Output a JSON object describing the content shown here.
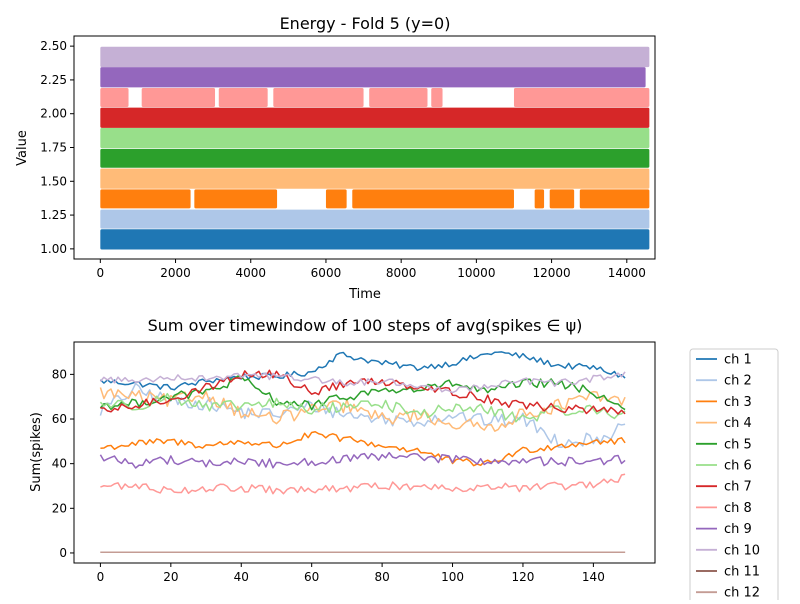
{
  "chart_data": [
    {
      "type": "scatter",
      "title": "Energy - Fold 5 (y=0)",
      "xlabel": "Time",
      "ylabel": "Value",
      "xlim": [
        -700,
        14750
      ],
      "ylim": [
        0.925,
        2.575
      ],
      "xticks": [
        0,
        2000,
        4000,
        6000,
        8000,
        10000,
        12000,
        14000
      ],
      "xtick_labels": [
        "0",
        "2000",
        "4000",
        "6000",
        "8000",
        "10000",
        "12000",
        "14000"
      ],
      "yticks": [
        1.0,
        1.25,
        1.5,
        1.75,
        2.0,
        2.25,
        2.5
      ],
      "ytick_labels": [
        "1.00",
        "1.25",
        "1.50",
        "1.75",
        "2.00",
        "2.25",
        "2.50"
      ],
      "grid": false,
      "bands": [
        {
          "center": 1.07,
          "half": 0.075,
          "color": "#1f77b4",
          "segments": [
            [
              0,
              14600
            ]
          ]
        },
        {
          "center": 1.22,
          "half": 0.07,
          "color": "#aec7e8",
          "segments": [
            [
              0,
              14600
            ]
          ]
        },
        {
          "center": 1.37,
          "half": 0.07,
          "color": "#ff7f0e",
          "segments": [
            [
              0,
              2400
            ],
            [
              2500,
              4700
            ],
            [
              6000,
              6550
            ],
            [
              6700,
              11000
            ],
            [
              11550,
              11800
            ],
            [
              11950,
              12600
            ],
            [
              12750,
              14600
            ]
          ]
        },
        {
          "center": 1.52,
          "half": 0.075,
          "color": "#ffbb78",
          "segments": [
            [
              0,
              14600
            ]
          ]
        },
        {
          "center": 1.67,
          "half": 0.07,
          "color": "#2ca02c",
          "segments": [
            [
              0,
              14600
            ]
          ]
        },
        {
          "center": 1.82,
          "half": 0.075,
          "color": "#98df8a",
          "segments": [
            [
              0,
              14600
            ]
          ]
        },
        {
          "center": 1.97,
          "half": 0.075,
          "color": "#d62728",
          "segments": [
            [
              0,
              14600
            ]
          ]
        },
        {
          "center": 2.12,
          "half": 0.07,
          "color": "#ff9896",
          "segments": [
            [
              0,
              750
            ],
            [
              1100,
              3050
            ],
            [
              3150,
              4450
            ],
            [
              4600,
              7000
            ],
            [
              7150,
              8700
            ],
            [
              8800,
              9100
            ],
            [
              11000,
              14600
            ]
          ]
        },
        {
          "center": 2.27,
          "half": 0.075,
          "color": "#9467bd",
          "segments": [
            [
              0,
              14500
            ]
          ]
        },
        {
          "center": 2.42,
          "half": 0.075,
          "color": "#c5b0d5",
          "segments": [
            [
              0,
              14600
            ]
          ]
        }
      ]
    },
    {
      "type": "line",
      "title": "Sum over timewindow of 100 steps of avg(spikes ∈ ψ)",
      "xlabel": "",
      "ylabel": "Sum(spikes)",
      "xlim": [
        -7.5,
        157.5
      ],
      "ylim": [
        -4.5,
        94.5
      ],
      "xticks": [
        0,
        20,
        40,
        60,
        80,
        100,
        120,
        140
      ],
      "xtick_labels": [
        "0",
        "20",
        "40",
        "60",
        "80",
        "100",
        "120",
        "140"
      ],
      "yticks": [
        0,
        20,
        40,
        60,
        80
      ],
      "ytick_labels": [
        "0",
        "20",
        "40",
        "60",
        "80"
      ],
      "n_points": 150,
      "legend": "outside-right",
      "series": [
        {
          "name": "ch 1",
          "color": "#1f77b4",
          "keypoints": [
            [
              0,
              77
            ],
            [
              10,
              76
            ],
            [
              20,
              74
            ],
            [
              30,
              77
            ],
            [
              40,
              79
            ],
            [
              50,
              79
            ],
            [
              60,
              81
            ],
            [
              68,
              89
            ],
            [
              80,
              85
            ],
            [
              90,
              83
            ],
            [
              100,
              85
            ],
            [
              112,
              90
            ],
            [
              120,
              88
            ],
            [
              130,
              84
            ],
            [
              140,
              83
            ],
            [
              149,
              79
            ]
          ],
          "noise": 1.4
        },
        {
          "name": "ch 2",
          "color": "#aec7e8",
          "keypoints": [
            [
              0,
              64
            ],
            [
              10,
              73
            ],
            [
              20,
              68
            ],
            [
              30,
              67
            ],
            [
              40,
              63
            ],
            [
              50,
              62
            ],
            [
              60,
              66
            ],
            [
              70,
              62
            ],
            [
              80,
              60
            ],
            [
              90,
              59
            ],
            [
              100,
              62
            ],
            [
              110,
              59
            ],
            [
              120,
              60
            ],
            [
              130,
              50
            ],
            [
              140,
              51
            ],
            [
              149,
              56
            ]
          ],
          "noise": 3.0
        },
        {
          "name": "ch 3",
          "color": "#ff7f0e",
          "keypoints": [
            [
              0,
              47
            ],
            [
              10,
              49
            ],
            [
              20,
              50
            ],
            [
              30,
              48
            ],
            [
              40,
              50
            ],
            [
              50,
              48
            ],
            [
              60,
              53
            ],
            [
              70,
              51
            ],
            [
              80,
              48
            ],
            [
              90,
              46
            ],
            [
              100,
              41
            ],
            [
              110,
              40
            ],
            [
              120,
              46
            ],
            [
              130,
              48
            ],
            [
              140,
              50
            ],
            [
              149,
              50
            ]
          ],
          "noise": 1.6
        },
        {
          "name": "ch 4",
          "color": "#ffbb78",
          "keypoints": [
            [
              0,
              72
            ],
            [
              10,
              70
            ],
            [
              20,
              68
            ],
            [
              30,
              71
            ],
            [
              40,
              63
            ],
            [
              50,
              60
            ],
            [
              60,
              64
            ],
            [
              70,
              66
            ],
            [
              80,
              60
            ],
            [
              90,
              62
            ],
            [
              100,
              58
            ],
            [
              110,
              56
            ],
            [
              120,
              62
            ],
            [
              130,
              66
            ],
            [
              140,
              70
            ],
            [
              149,
              68
            ]
          ],
          "noise": 3.0
        },
        {
          "name": "ch 5",
          "color": "#2ca02c",
          "keypoints": [
            [
              0,
              66
            ],
            [
              10,
              67
            ],
            [
              20,
              70
            ],
            [
              30,
              72
            ],
            [
              40,
              78
            ],
            [
              50,
              68
            ],
            [
              60,
              66
            ],
            [
              70,
              70
            ],
            [
              80,
              73
            ],
            [
              90,
              73
            ],
            [
              100,
              76
            ],
            [
              110,
              72
            ],
            [
              120,
              76
            ],
            [
              130,
              76
            ],
            [
              140,
              72
            ],
            [
              149,
              65
            ]
          ],
          "noise": 2.0
        },
        {
          "name": "ch 6",
          "color": "#98df8a",
          "keypoints": [
            [
              0,
              67
            ],
            [
              10,
              66
            ],
            [
              20,
              70
            ],
            [
              30,
              65
            ],
            [
              40,
              66
            ],
            [
              50,
              67
            ],
            [
              60,
              64
            ],
            [
              70,
              66
            ],
            [
              80,
              67
            ],
            [
              90,
              62
            ],
            [
              100,
              65
            ],
            [
              110,
              64
            ],
            [
              120,
              60
            ],
            [
              130,
              64
            ],
            [
              140,
              64
            ],
            [
              149,
              62
            ]
          ],
          "noise": 2.5
        },
        {
          "name": "ch 7",
          "color": "#d62728",
          "keypoints": [
            [
              0,
              63
            ],
            [
              10,
              66
            ],
            [
              20,
              69
            ],
            [
              30,
              74
            ],
            [
              40,
              80
            ],
            [
              50,
              80
            ],
            [
              60,
              72
            ],
            [
              70,
              76
            ],
            [
              80,
              77
            ],
            [
              90,
              75
            ],
            [
              100,
              72
            ],
            [
              110,
              69
            ],
            [
              120,
              66
            ],
            [
              130,
              65
            ],
            [
              140,
              64
            ],
            [
              149,
              63
            ]
          ],
          "noise": 2.0
        },
        {
          "name": "ch 8",
          "color": "#ff9896",
          "keypoints": [
            [
              0,
              30
            ],
            [
              10,
              30
            ],
            [
              20,
              28
            ],
            [
              30,
              29
            ],
            [
              40,
              29
            ],
            [
              50,
              28
            ],
            [
              60,
              28
            ],
            [
              70,
              29
            ],
            [
              80,
              30
            ],
            [
              90,
              30
            ],
            [
              100,
              29
            ],
            [
              110,
              30
            ],
            [
              120,
              29
            ],
            [
              130,
              30
            ],
            [
              140,
              30
            ],
            [
              149,
              34
            ]
          ],
          "noise": 1.8
        },
        {
          "name": "ch 9",
          "color": "#9467bd",
          "keypoints": [
            [
              0,
              43
            ],
            [
              10,
              40
            ],
            [
              20,
              42
            ],
            [
              30,
              40
            ],
            [
              40,
              41
            ],
            [
              50,
              40
            ],
            [
              60,
              41
            ],
            [
              70,
              42
            ],
            [
              80,
              43
            ],
            [
              90,
              43
            ],
            [
              100,
              42
            ],
            [
              110,
              41
            ],
            [
              120,
              41
            ],
            [
              130,
              41
            ],
            [
              140,
              41
            ],
            [
              149,
              42
            ]
          ],
          "noise": 2.0
        },
        {
          "name": "ch 10",
          "color": "#c5b0d5",
          "keypoints": [
            [
              0,
              78
            ],
            [
              10,
              77
            ],
            [
              20,
              79
            ],
            [
              30,
              78
            ],
            [
              40,
              80
            ],
            [
              50,
              79
            ],
            [
              60,
              78
            ],
            [
              70,
              76
            ],
            [
              80,
              77
            ],
            [
              90,
              75
            ],
            [
              100,
              73
            ],
            [
              110,
              75
            ],
            [
              120,
              77
            ],
            [
              130,
              76
            ],
            [
              140,
              78
            ],
            [
              149,
              80
            ]
          ],
          "noise": 1.5
        },
        {
          "name": "ch 11",
          "color": "#8c564b",
          "keypoints": [
            [
              0,
              0.3
            ],
            [
              149,
              0.3
            ]
          ],
          "noise": 0
        },
        {
          "name": "ch 12",
          "color": "#c49c94",
          "keypoints": [
            [
              0,
              0.3
            ],
            [
              149,
              0.3
            ]
          ],
          "noise": 0
        }
      ]
    }
  ]
}
